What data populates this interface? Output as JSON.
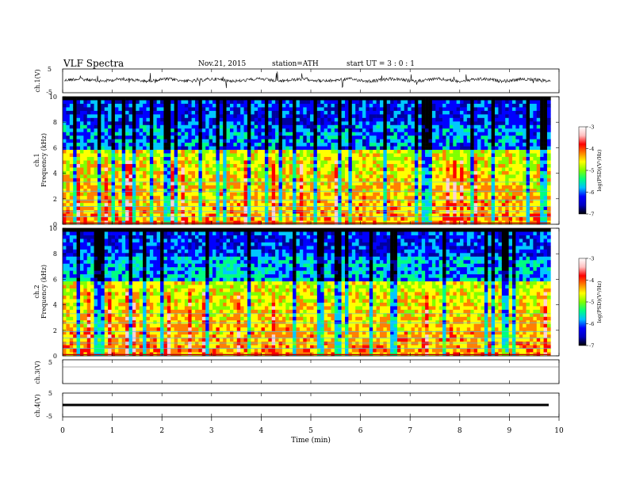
{
  "header": {
    "title": "VLF  Spectra",
    "date": "Nov.21, 2015",
    "station": "station=ATH",
    "start": "start  UT  =   3  : 0   : 1"
  },
  "chart_data": [
    {
      "type": "line",
      "panel": "ch1-waveform",
      "ylabel": "ch.1(V)",
      "ylim": [
        -5,
        5
      ],
      "yticks": [
        "5",
        "-5"
      ],
      "mean_value": 0,
      "description_values": "noise waveform around 0 V with spikes"
    },
    {
      "type": "heatmap",
      "panel": "ch1-spectrogram",
      "ylabel_top": "ch.1",
      "ylabel": "Frequency  (kHz)",
      "ylim": [
        0,
        10
      ],
      "yticks": [
        "0",
        "2",
        "4",
        "6",
        "8",
        "10"
      ],
      "colorbar": {
        "label": "log(PSD)(V²/Hz)",
        "range": [
          -7,
          -3
        ],
        "ticks": [
          "-3",
          "-4",
          "-5",
          "-6",
          "-7"
        ]
      }
    },
    {
      "type": "heatmap",
      "panel": "ch2-spectrogram",
      "ylabel_top": "ch.2",
      "ylabel": "Frequency  (kHz)",
      "ylim": [
        0,
        10
      ],
      "yticks": [
        "0",
        "2",
        "4",
        "6",
        "8",
        "10"
      ],
      "colorbar": {
        "label": "log(PSD)(V²/Hz)",
        "range": [
          -7,
          -3
        ],
        "ticks": [
          "-3",
          "-4",
          "-5",
          "-6",
          "-7"
        ]
      }
    },
    {
      "type": "line",
      "panel": "ch3-waveform",
      "ylabel": "ch.3(V)",
      "ylim": [
        -5,
        5
      ],
      "yticks": [
        "5"
      ],
      "mean_value": 0
    },
    {
      "type": "line",
      "panel": "ch4-waveform",
      "ylabel": "ch.4(V)",
      "ylim": [
        -5,
        5
      ],
      "yticks": [
        "5",
        "-5"
      ],
      "mean_value": 0
    }
  ],
  "xaxis": {
    "label": "Time  (min)",
    "range": [
      0,
      10
    ],
    "ticks": [
      "0",
      "1",
      "2",
      "3",
      "4",
      "5",
      "6",
      "7",
      "8",
      "9",
      "10"
    ],
    "data_end": 9.83
  },
  "colors": {
    "colormap": [
      "#000000",
      "#0000a0",
      "#0000ff",
      "#00c8ff",
      "#00ff80",
      "#80ff00",
      "#ffff00",
      "#ff8000",
      "#ff0000",
      "#ffd0d0",
      "#ffffff"
    ]
  }
}
